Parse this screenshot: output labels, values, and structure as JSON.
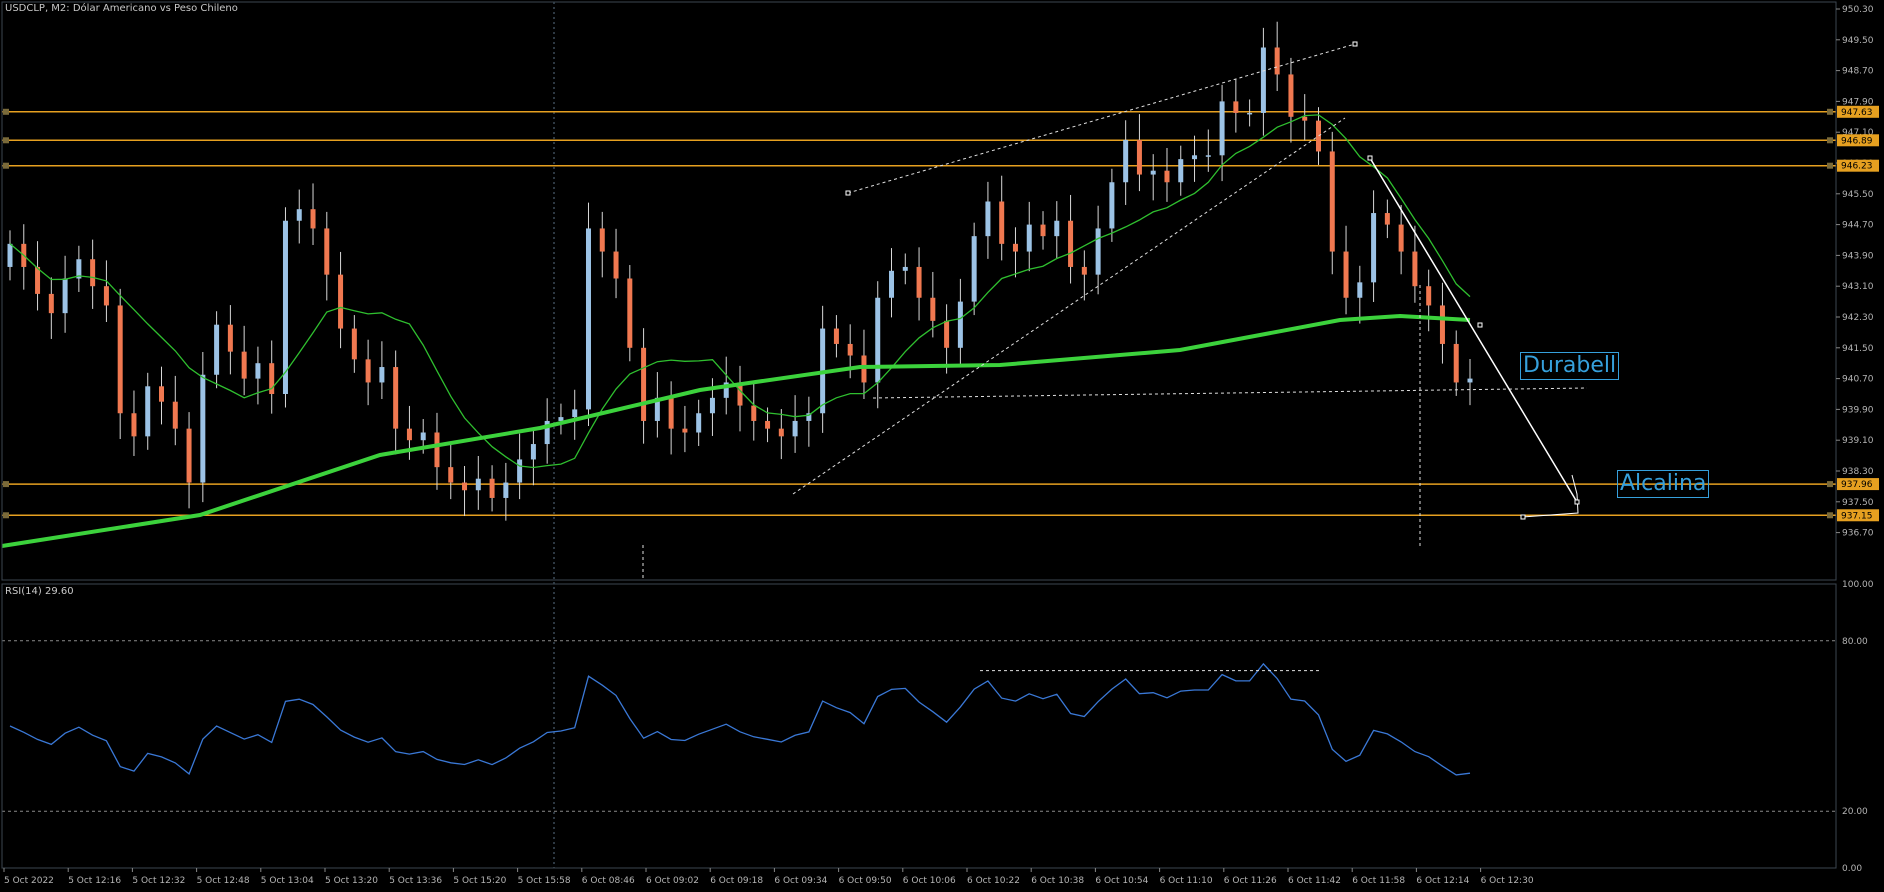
{
  "header": {
    "title": "USDCLP, M2:  Dólar Americano vs Peso Chileno"
  },
  "rsi_panel": {
    "title": "RSI(14) 29.60",
    "scale": [
      "100.00",
      "80.00",
      "20.00",
      "0.00"
    ]
  },
  "price_axis": {
    "ticks": [
      "950.30",
      "949.50",
      "948.70",
      "947.90",
      "947.10",
      "946.30",
      "945.50",
      "944.70",
      "943.90",
      "943.10",
      "942.30",
      "941.50",
      "940.70",
      "939.90",
      "939.10",
      "938.30",
      "937.50",
      "936.70"
    ]
  },
  "levels": [
    {
      "name": "level-947-63",
      "label": "947.63",
      "price": 947.63
    },
    {
      "name": "level-946-89",
      "label": "946.89",
      "price": 946.89
    },
    {
      "name": "level-946-23",
      "label": "946.23",
      "price": 946.23
    },
    {
      "name": "level-937-96",
      "label": "937.96",
      "price": 937.96
    },
    {
      "name": "level-937-15",
      "label": "937.15",
      "price": 937.15
    }
  ],
  "time_axis": {
    "ticks": [
      "5 Oct 2022",
      "5 Oct 12:16",
      "5 Oct 12:32",
      "5 Oct 12:48",
      "5 Oct 13:04",
      "5 Oct 13:20",
      "5 Oct 13:36",
      "5 Oct 15:20",
      "5 Oct 15:58",
      "6 Oct 08:46",
      "6 Oct 09:02",
      "6 Oct 09:18",
      "6 Oct 09:34",
      "6 Oct 09:50",
      "6 Oct 10:06",
      "6 Oct 10:22",
      "6 Oct 10:38",
      "6 Oct 10:54",
      "6 Oct 11:10",
      "6 Oct 11:26",
      "6 Oct 11:42",
      "6 Oct 11:58",
      "6 Oct 12:14",
      "6 Oct 12:30"
    ]
  },
  "objects": {
    "durabell": "Durabell",
    "alcalina": "Alcalina"
  },
  "colors": {
    "background": "#000000",
    "bull": "#9cc3e6",
    "bear": "#f07850",
    "ma_fast": "#2fbf2f",
    "ma_slow": "#3cd23c",
    "level": "#e6a020",
    "rsi": "#3a78d6",
    "label": "#36a0dc"
  },
  "chart_data": {
    "type": "candlestick",
    "symbol": "USDCLP",
    "timeframe": "M2",
    "ylim": [
      936.4,
      950.5
    ],
    "closes": [
      944.2,
      943.6,
      942.9,
      942.4,
      943.3,
      943.8,
      943.1,
      942.6,
      939.8,
      939.2,
      940.5,
      940.1,
      939.4,
      938.0,
      940.8,
      942.1,
      941.4,
      940.7,
      941.1,
      940.3,
      944.8,
      945.1,
      944.6,
      943.4,
      942.0,
      941.2,
      940.6,
      941.0,
      939.4,
      939.1,
      939.3,
      938.4,
      938.0,
      937.8,
      938.1,
      937.6,
      938.0,
      938.6,
      939.0,
      939.6,
      939.7,
      939.9,
      944.6,
      944.0,
      943.3,
      941.5,
      939.6,
      940.2,
      939.4,
      939.3,
      939.8,
      940.2,
      940.6,
      940.0,
      939.6,
      939.4,
      939.2,
      939.6,
      939.8,
      942.0,
      941.6,
      941.3,
      940.6,
      942.8,
      943.5,
      943.6,
      942.8,
      942.2,
      941.5,
      942.7,
      944.4,
      945.3,
      944.2,
      944.0,
      944.7,
      944.4,
      944.8,
      943.6,
      943.4,
      944.6,
      945.8,
      946.9,
      946.0,
      946.1,
      945.8,
      946.4,
      946.5,
      946.5,
      947.9,
      947.6,
      947.6,
      949.3,
      948.6,
      947.5,
      947.4,
      946.6,
      944.0,
      942.8,
      943.2,
      945.0,
      944.7,
      944.0,
      943.1,
      942.6,
      941.6,
      940.6,
      940.7
    ],
    "rsi_last": 29.6,
    "rsi_levels": [
      80,
      20
    ]
  }
}
